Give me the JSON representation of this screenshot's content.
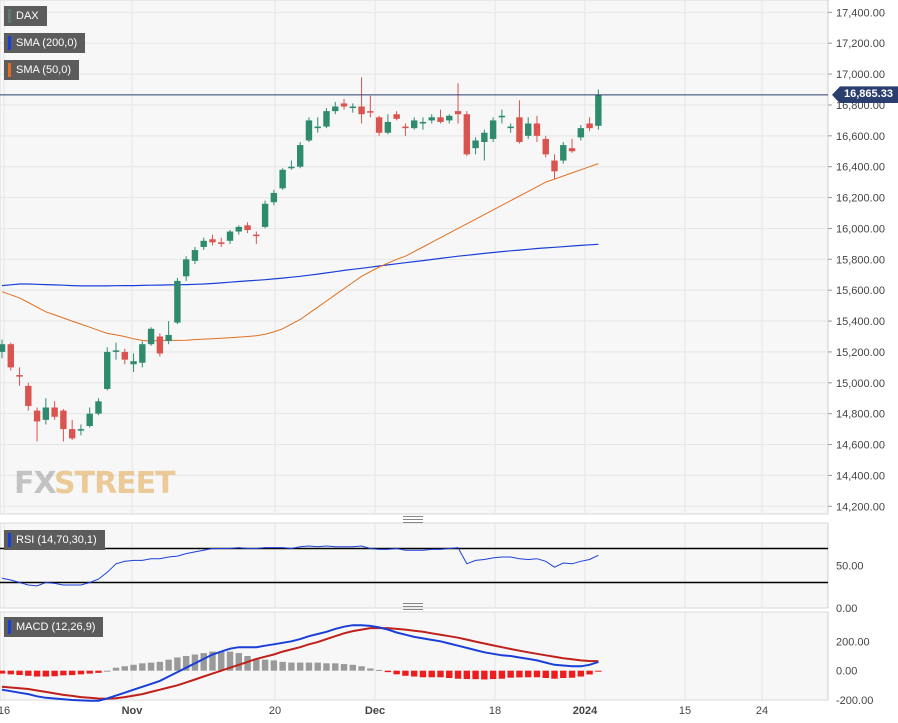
{
  "chart_data": [
    {
      "type": "candlestick",
      "title": "",
      "legend": [
        {
          "name": "DAX",
          "color": "#5c7a6a"
        },
        {
          "name": "SMA (200,0)",
          "color": "#1a3fd8"
        },
        {
          "name": "SMA (50,0)",
          "color": "#e07020"
        }
      ],
      "last_price": "16,865.33",
      "y_ticks": [
        "17,400.00",
        "17,200.00",
        "17,000.00",
        "16,800.00",
        "16,600.00",
        "16,400.00",
        "16,200.00",
        "16,000.00",
        "15,800.00",
        "15,600.00",
        "15,400.00",
        "15,200.00",
        "15,000.00",
        "14,800.00",
        "14,600.00",
        "14,400.00",
        "14,200.00"
      ],
      "ylim": [
        14150,
        17480
      ],
      "x_ticks": [
        "16",
        "Nov",
        "20",
        "Dec",
        "18",
        "2024",
        "15",
        "24"
      ],
      "colors": {
        "up": "#2e8b6e",
        "down": "#d9534f",
        "sma200": "#1a3fd8",
        "sma50": "#e07020"
      },
      "candles": [
        {
          "o": 15200,
          "h": 15280,
          "l": 15160,
          "c": 15250
        },
        {
          "o": 15250,
          "h": 15260,
          "l": 15080,
          "c": 15100
        },
        {
          "o": 15050,
          "h": 15100,
          "l": 14980,
          "c": 15040
        },
        {
          "o": 14980,
          "h": 15000,
          "l": 14820,
          "c": 14850
        },
        {
          "o": 14820,
          "h": 14840,
          "l": 14620,
          "c": 14750
        },
        {
          "o": 14760,
          "h": 14900,
          "l": 14730,
          "c": 14840
        },
        {
          "o": 14840,
          "h": 14880,
          "l": 14760,
          "c": 14780
        },
        {
          "o": 14820,
          "h": 14830,
          "l": 14620,
          "c": 14700
        },
        {
          "o": 14700,
          "h": 14760,
          "l": 14630,
          "c": 14640
        },
        {
          "o": 14690,
          "h": 14730,
          "l": 14660,
          "c": 14700
        },
        {
          "o": 14720,
          "h": 14840,
          "l": 14710,
          "c": 14800
        },
        {
          "o": 14800,
          "h": 14900,
          "l": 14790,
          "c": 14880
        },
        {
          "o": 14960,
          "h": 15230,
          "l": 14950,
          "c": 15200
        },
        {
          "o": 15200,
          "h": 15260,
          "l": 15150,
          "c": 15210
        },
        {
          "o": 15200,
          "h": 15220,
          "l": 15120,
          "c": 15150
        },
        {
          "o": 15120,
          "h": 15190,
          "l": 15070,
          "c": 15140
        },
        {
          "o": 15130,
          "h": 15270,
          "l": 15100,
          "c": 15250
        },
        {
          "o": 15250,
          "h": 15360,
          "l": 15240,
          "c": 15350
        },
        {
          "o": 15300,
          "h": 15320,
          "l": 15170,
          "c": 15190
        },
        {
          "o": 15270,
          "h": 15400,
          "l": 15250,
          "c": 15310
        },
        {
          "o": 15390,
          "h": 15680,
          "l": 15380,
          "c": 15660
        },
        {
          "o": 15690,
          "h": 15820,
          "l": 15660,
          "c": 15800
        },
        {
          "o": 15790,
          "h": 15880,
          "l": 15770,
          "c": 15860
        },
        {
          "o": 15880,
          "h": 15940,
          "l": 15860,
          "c": 15920
        },
        {
          "o": 15930,
          "h": 15960,
          "l": 15890,
          "c": 15910
        },
        {
          "o": 15910,
          "h": 15940,
          "l": 15880,
          "c": 15900
        },
        {
          "o": 15920,
          "h": 15990,
          "l": 15900,
          "c": 15980
        },
        {
          "o": 15980,
          "h": 16020,
          "l": 15960,
          "c": 16010
        },
        {
          "o": 16020,
          "h": 16040,
          "l": 15970,
          "c": 15990
        },
        {
          "o": 15960,
          "h": 15980,
          "l": 15900,
          "c": 15950
        },
        {
          "o": 16010,
          "h": 16180,
          "l": 16000,
          "c": 16160
        },
        {
          "o": 16170,
          "h": 16250,
          "l": 16150,
          "c": 16230
        },
        {
          "o": 16260,
          "h": 16390,
          "l": 16250,
          "c": 16380
        },
        {
          "o": 16390,
          "h": 16440,
          "l": 16380,
          "c": 16400
        },
        {
          "o": 16400,
          "h": 16560,
          "l": 16390,
          "c": 16540
        },
        {
          "o": 16570,
          "h": 16720,
          "l": 16560,
          "c": 16700
        },
        {
          "o": 16650,
          "h": 16720,
          "l": 16620,
          "c": 16660
        },
        {
          "o": 16660,
          "h": 16780,
          "l": 16650,
          "c": 16760
        },
        {
          "o": 16760,
          "h": 16820,
          "l": 16740,
          "c": 16790
        },
        {
          "o": 16810,
          "h": 16840,
          "l": 16770,
          "c": 16790
        },
        {
          "o": 16780,
          "h": 16810,
          "l": 16750,
          "c": 16790
        },
        {
          "o": 16790,
          "h": 16980,
          "l": 16680,
          "c": 16740
        },
        {
          "o": 16760,
          "h": 16860,
          "l": 16720,
          "c": 16750
        },
        {
          "o": 16720,
          "h": 16730,
          "l": 16600,
          "c": 16620
        },
        {
          "o": 16620,
          "h": 16740,
          "l": 16610,
          "c": 16690
        },
        {
          "o": 16740,
          "h": 16760,
          "l": 16700,
          "c": 16710
        },
        {
          "o": 16660,
          "h": 16680,
          "l": 16600,
          "c": 16650
        },
        {
          "o": 16650,
          "h": 16720,
          "l": 16640,
          "c": 16700
        },
        {
          "o": 16680,
          "h": 16720,
          "l": 16640,
          "c": 16690
        },
        {
          "o": 16700,
          "h": 16740,
          "l": 16680,
          "c": 16720
        },
        {
          "o": 16720,
          "h": 16770,
          "l": 16680,
          "c": 16690
        },
        {
          "o": 16700,
          "h": 16740,
          "l": 16680,
          "c": 16730
        },
        {
          "o": 16760,
          "h": 16940,
          "l": 16680,
          "c": 16740
        },
        {
          "o": 16740,
          "h": 16760,
          "l": 16470,
          "c": 16480
        },
        {
          "o": 16520,
          "h": 16590,
          "l": 16480,
          "c": 16570
        },
        {
          "o": 16560,
          "h": 16640,
          "l": 16440,
          "c": 16620
        },
        {
          "o": 16580,
          "h": 16720,
          "l": 16560,
          "c": 16700
        },
        {
          "o": 16720,
          "h": 16770,
          "l": 16680,
          "c": 16730
        },
        {
          "o": 16650,
          "h": 16680,
          "l": 16620,
          "c": 16660
        },
        {
          "o": 16720,
          "h": 16830,
          "l": 16550,
          "c": 16560
        },
        {
          "o": 16600,
          "h": 16720,
          "l": 16580,
          "c": 16680
        },
        {
          "o": 16680,
          "h": 16730,
          "l": 16560,
          "c": 16600
        },
        {
          "o": 16580,
          "h": 16600,
          "l": 16460,
          "c": 16480
        },
        {
          "o": 16440,
          "h": 16480,
          "l": 16320,
          "c": 16370
        },
        {
          "o": 16440,
          "h": 16560,
          "l": 16420,
          "c": 16540
        },
        {
          "o": 16520,
          "h": 16580,
          "l": 16490,
          "c": 16500
        },
        {
          "o": 16590,
          "h": 16670,
          "l": 16570,
          "c": 16650
        },
        {
          "o": 16680,
          "h": 16720,
          "l": 16630,
          "c": 16650
        },
        {
          "o": 16665,
          "h": 16900,
          "l": 16640,
          "c": 16865
        }
      ],
      "sma200": [
        15630,
        15635,
        15640,
        15640,
        15638,
        15636,
        15634,
        15632,
        15630,
        15628,
        15628,
        15628,
        15628,
        15629,
        15630,
        15630,
        15631,
        15632,
        15633,
        15634,
        15635,
        15636,
        15638,
        15640,
        15643,
        15647,
        15652,
        15656,
        15660,
        15664,
        15668,
        15673,
        15678,
        15684,
        15690,
        15697,
        15704,
        15712,
        15720,
        15728,
        15735,
        15742,
        15749,
        15757,
        15764,
        15771,
        15778,
        15785,
        15792,
        15799,
        15806,
        15813,
        15820,
        15826,
        15832,
        15838,
        15844,
        15850,
        15855,
        15860,
        15865,
        15870,
        15874,
        15878,
        15882,
        15886,
        15890,
        15894,
        15897
      ],
      "sma50": [
        15590,
        15570,
        15550,
        15520,
        15490,
        15460,
        15440,
        15420,
        15400,
        15380,
        15360,
        15340,
        15320,
        15310,
        15300,
        15285,
        15275,
        15270,
        15275,
        15275,
        15275,
        15276,
        15280,
        15283,
        15286,
        15289,
        15292,
        15296,
        15300,
        15305,
        15315,
        15330,
        15350,
        15380,
        15410,
        15450,
        15490,
        15530,
        15570,
        15610,
        15650,
        15690,
        15720,
        15750,
        15775,
        15800,
        15820,
        15850,
        15880,
        15910,
        15940,
        15970,
        16000,
        16030,
        16060,
        16090,
        16120,
        16150,
        16180,
        16210,
        16240,
        16270,
        16300,
        16320,
        16340,
        16360,
        16380,
        16400,
        16420
      ]
    },
    {
      "type": "line",
      "title": "",
      "legend": [
        {
          "name": "RSI (14,70,30,1)",
          "color": "#1a3fd8"
        }
      ],
      "y_ticks": [
        "50.00",
        "0.00"
      ],
      "ylim": [
        0,
        100
      ],
      "levels": [
        70,
        30
      ],
      "values": [
        35,
        33,
        30,
        27,
        26,
        30,
        29,
        27,
        27,
        27,
        30,
        34,
        42,
        52,
        55,
        56,
        56,
        58,
        58,
        60,
        61,
        64,
        66,
        68,
        70,
        70,
        70,
        71,
        70,
        70,
        71,
        71,
        71,
        70,
        72,
        73,
        72,
        73,
        72,
        72,
        72,
        73,
        70,
        69,
        69,
        70,
        68,
        68,
        68,
        69,
        69,
        70,
        71,
        52,
        56,
        57,
        59,
        60,
        60,
        58,
        57,
        58,
        55,
        48,
        53,
        52,
        55,
        57,
        62
      ]
    },
    {
      "type": "line",
      "title": "",
      "legend": [
        {
          "name": "MACD (12,26,9)",
          "color": "#1a3fd8"
        }
      ],
      "y_ticks": [
        "200.00",
        "0.00",
        "-200.00"
      ],
      "ylim": [
        -200,
        400
      ],
      "macd": [
        -130,
        -140,
        -150,
        -160,
        -175,
        -185,
        -190,
        -195,
        -200,
        -203,
        -205,
        -205,
        -190,
        -170,
        -150,
        -130,
        -110,
        -90,
        -70,
        -40,
        -10,
        20,
        50,
        80,
        110,
        130,
        150,
        160,
        160,
        160,
        170,
        180,
        190,
        200,
        215,
        235,
        250,
        265,
        285,
        300,
        310,
        310,
        305,
        295,
        280,
        260,
        245,
        230,
        220,
        210,
        200,
        185,
        170,
        155,
        140,
        125,
        115,
        105,
        100,
        90,
        80,
        70,
        55,
        40,
        35,
        30,
        30,
        40,
        60
      ],
      "signal": [
        -110,
        -115,
        -120,
        -125,
        -135,
        -145,
        -155,
        -165,
        -172,
        -180,
        -185,
        -190,
        -192,
        -188,
        -180,
        -170,
        -160,
        -145,
        -130,
        -115,
        -100,
        -80,
        -60,
        -40,
        -20,
        0,
        20,
        40,
        60,
        80,
        95,
        110,
        130,
        145,
        160,
        180,
        195,
        215,
        235,
        255,
        270,
        280,
        290,
        290,
        290,
        285,
        280,
        272,
        265,
        255,
        245,
        235,
        225,
        212,
        198,
        185,
        172,
        160,
        148,
        136,
        125,
        115,
        105,
        95,
        85,
        78,
        70,
        66,
        65
      ],
      "histogram": [
        -20,
        -25,
        -30,
        -35,
        -40,
        -40,
        -38,
        -32,
        -30,
        -25,
        -20,
        -15,
        0,
        20,
        30,
        40,
        50,
        55,
        60,
        75,
        90,
        100,
        110,
        120,
        130,
        130,
        130,
        120,
        100,
        80,
        75,
        70,
        60,
        55,
        55,
        55,
        55,
        50,
        50,
        45,
        40,
        30,
        15,
        5,
        -10,
        -25,
        -35,
        -40,
        -45,
        -45,
        -45,
        -50,
        -55,
        -57,
        -58,
        -60,
        -57,
        -55,
        -48,
        -46,
        -45,
        -45,
        -50,
        -55,
        -50,
        -48,
        -40,
        -26,
        -5
      ]
    }
  ]
}
